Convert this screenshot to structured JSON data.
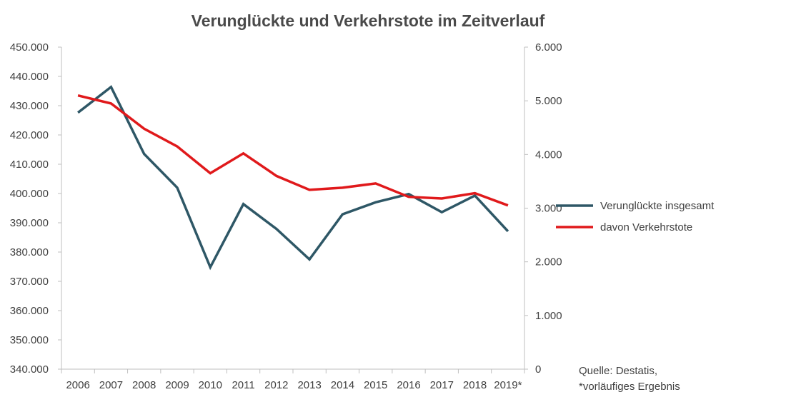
{
  "chart_data": {
    "type": "line",
    "title": "Verunglückte und Verkehrstote im Zeitverlauf",
    "categories": [
      "2006",
      "2007",
      "2008",
      "2009",
      "2010",
      "2011",
      "2012",
      "2013",
      "2014",
      "2015",
      "2016",
      "2017",
      "2018",
      "2019*"
    ],
    "y_left": {
      "range": [
        340000,
        450000
      ],
      "step": 10000,
      "tick_labels": [
        "340.000",
        "350.000",
        "360.000",
        "370.000",
        "380.000",
        "390.000",
        "400.000",
        "410.000",
        "420.000",
        "430.000",
        "440.000",
        "450.000"
      ]
    },
    "y_right": {
      "range": [
        0,
        6000
      ],
      "step": 1000,
      "tick_labels": [
        "0",
        "1.000",
        "2.000",
        "3.000",
        "4.000",
        "5.000",
        "6.000"
      ]
    },
    "series": [
      {
        "name": "Verunglückte insgesamt",
        "axis": "left",
        "color": "#2e5766",
        "values": [
          427600,
          436400,
          413500,
          402000,
          374800,
          396400,
          387900,
          377500,
          392900,
          397000,
          399800,
          393600,
          399300,
          387100
        ]
      },
      {
        "name": "davon Verkehrstote",
        "axis": "right",
        "color": "#e0191b",
        "values": [
          5100,
          4950,
          4480,
          4150,
          3650,
          4020,
          3600,
          3340,
          3380,
          3460,
          3210,
          3180,
          3280,
          3050
        ]
      }
    ],
    "legend": "right",
    "grid": false
  },
  "source": {
    "line1": "Quelle: Destatis,",
    "line2": "*vorläufiges Ergebnis"
  }
}
